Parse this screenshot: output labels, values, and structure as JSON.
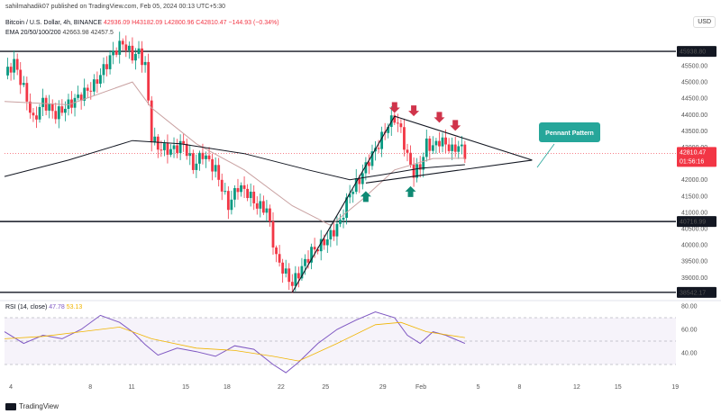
{
  "header": {
    "publisher_line": "sahilmahadik07 published on TradingView.com, Feb 05, 2024 00:13 UTC+5:30",
    "symbol": "Bitcoin / U.S. Dollar, 4h, BINANCE",
    "ohlc_visible": "42936.09 H43182.09 L42800.96 C42810.47",
    "change": "−144.93 (−0.34%)",
    "ema_label": "EMA 20/50/100/200",
    "ema_values": [
      "42663.98",
      "42457.5"
    ],
    "currency": "USD"
  },
  "rsi": {
    "label": "RSI (14, close)",
    "value": "47.78",
    "ma_value": "53.13"
  },
  "footer": {
    "brand": "TradingView"
  },
  "annotation": {
    "text": "Pennant Pattern"
  },
  "chart_data": {
    "type": "candlestick",
    "title": "Bitcoin / U.S. Dollar, 4h, BINANCE",
    "y_range": [
      38400,
      46300
    ],
    "y_ticks": [
      39000,
      39500,
      40000,
      40500,
      41000,
      41500,
      42000,
      42500,
      43000,
      43500,
      44000,
      44500,
      45000,
      45500
    ],
    "x_ticks": [
      "4",
      "8",
      "11",
      "15",
      "18",
      "22",
      "25",
      "29",
      "Feb",
      "5",
      "8",
      "12",
      "15",
      "19"
    ],
    "levels": {
      "horizontal": [
        45938.8,
        40716.99,
        38542.17
      ],
      "labels": [
        "45938.80",
        "40716.99",
        "38542.17"
      ]
    },
    "last_price": {
      "value": "42810.47",
      "countdown": "01:56:16"
    },
    "price_path": [
      [
        0,
        45200
      ],
      [
        3,
        45600
      ],
      [
        6,
        44800
      ],
      [
        9,
        43800
      ],
      [
        12,
        44400
      ],
      [
        16,
        44000
      ],
      [
        20,
        44300
      ],
      [
        24,
        44600
      ],
      [
        28,
        44900
      ],
      [
        31,
        45400
      ],
      [
        34,
        45900
      ],
      [
        37,
        46200
      ],
      [
        40,
        45800
      ],
      [
        42,
        45900
      ],
      [
        44,
        45500
      ],
      [
        46,
        43300
      ],
      [
        48,
        43000
      ],
      [
        52,
        42900
      ],
      [
        56,
        43100
      ],
      [
        59,
        42400
      ],
      [
        62,
        42800
      ],
      [
        66,
        42300
      ],
      [
        70,
        41200
      ],
      [
        73,
        41800
      ],
      [
        76,
        41600
      ],
      [
        79,
        41200
      ],
      [
        82,
        41100
      ],
      [
        85,
        39600
      ],
      [
        88,
        39100
      ],
      [
        90,
        38800
      ],
      [
        93,
        39300
      ],
      [
        96,
        39800
      ],
      [
        99,
        40000
      ],
      [
        102,
        40300
      ],
      [
        105,
        40700
      ],
      [
        108,
        41600
      ],
      [
        111,
        42000
      ],
      [
        114,
        42600
      ],
      [
        117,
        43100
      ],
      [
        120,
        43700
      ],
      [
        122,
        43900
      ],
      [
        124,
        43500
      ],
      [
        126,
        42700
      ],
      [
        128,
        42200
      ],
      [
        130,
        42400
      ],
      [
        132,
        43100
      ],
      [
        134,
        43000
      ],
      [
        136,
        43200
      ],
      [
        138,
        43100
      ],
      [
        140,
        42900
      ],
      [
        142,
        43050
      ],
      [
        144,
        42810
      ]
    ],
    "ema_series": {
      "ema20_50": [
        [
          0,
          44400
        ],
        [
          20,
          44300
        ],
        [
          40,
          45000
        ],
        [
          46,
          44200
        ],
        [
          60,
          43100
        ],
        [
          75,
          42300
        ],
        [
          90,
          41200
        ],
        [
          102,
          40600
        ],
        [
          112,
          41400
        ],
        [
          122,
          42300
        ],
        [
          134,
          42650
        ],
        [
          144,
          42660
        ]
      ],
      "ema100_200": [
        [
          0,
          42100
        ],
        [
          20,
          42600
        ],
        [
          40,
          43200
        ],
        [
          55,
          43100
        ],
        [
          75,
          42800
        ],
        [
          95,
          42300
        ],
        [
          108,
          42000
        ],
        [
          118,
          42150
        ],
        [
          130,
          42350
        ],
        [
          144,
          42460
        ]
      ]
    },
    "pattern_lines": {
      "flagpole": [
        [
          90,
          38542
        ],
        [
          122,
          43950
        ]
      ],
      "upper": [
        [
          122,
          43950
        ],
        [
          165,
          42600
        ]
      ],
      "lower": [
        [
          113,
          41900
        ],
        [
          165,
          42600
        ]
      ]
    },
    "down_arrows": [
      [
        122,
        44050
      ],
      [
        128,
        43950
      ],
      [
        136,
        43750
      ],
      [
        141,
        43500
      ]
    ],
    "up_arrows": [
      [
        113,
        41650
      ],
      [
        127,
        41800
      ]
    ],
    "rsi_range": [
      20,
      80
    ],
    "rsi_ticks": [
      40,
      60,
      80
    ],
    "rsi_band": [
      30,
      70
    ],
    "rsi_series": [
      [
        0,
        58
      ],
      [
        6,
        48
      ],
      [
        12,
        55
      ],
      [
        18,
        52
      ],
      [
        24,
        60
      ],
      [
        30,
        72
      ],
      [
        36,
        66
      ],
      [
        40,
        58
      ],
      [
        44,
        47
      ],
      [
        48,
        38
      ],
      [
        54,
        44
      ],
      [
        60,
        41
      ],
      [
        66,
        37
      ],
      [
        72,
        46
      ],
      [
        78,
        43
      ],
      [
        84,
        30
      ],
      [
        88,
        23
      ],
      [
        92,
        32
      ],
      [
        98,
        48
      ],
      [
        104,
        60
      ],
      [
        110,
        68
      ],
      [
        116,
        75
      ],
      [
        122,
        70
      ],
      [
        126,
        55
      ],
      [
        130,
        48
      ],
      [
        134,
        58
      ],
      [
        138,
        55
      ],
      [
        144,
        48
      ]
    ],
    "rsi_ma_series": [
      [
        0,
        52
      ],
      [
        12,
        54
      ],
      [
        24,
        58
      ],
      [
        36,
        62
      ],
      [
        46,
        52
      ],
      [
        60,
        44
      ],
      [
        72,
        42
      ],
      [
        84,
        37
      ],
      [
        92,
        33
      ],
      [
        104,
        48
      ],
      [
        116,
        64
      ],
      [
        124,
        66
      ],
      [
        132,
        58
      ],
      [
        144,
        53
      ]
    ]
  }
}
